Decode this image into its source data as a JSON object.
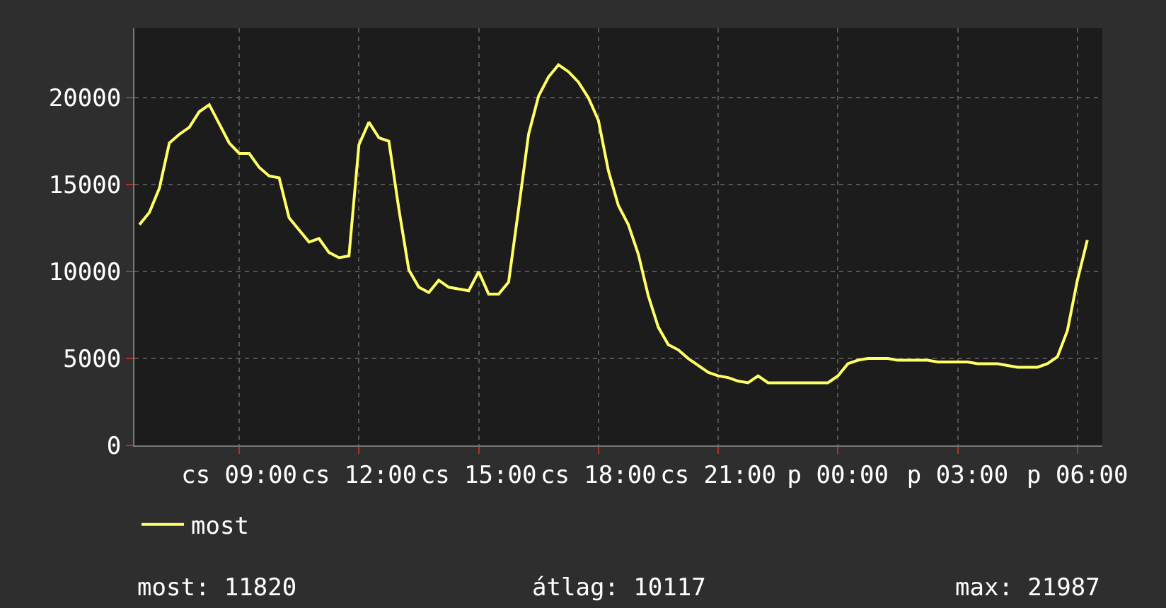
{
  "chart_data": {
    "type": "line",
    "categories": [
      null,
      null,
      null,
      null,
      null,
      null,
      null,
      null,
      null,
      null,
      "cs 09:00",
      null,
      null,
      null,
      null,
      null,
      null,
      null,
      null,
      null,
      null,
      null,
      "cs 12:00",
      null,
      null,
      null,
      null,
      null,
      null,
      null,
      null,
      null,
      null,
      null,
      "cs 15:00",
      null,
      null,
      null,
      null,
      null,
      null,
      null,
      null,
      null,
      null,
      null,
      "cs 18:00",
      null,
      null,
      null,
      null,
      null,
      null,
      null,
      null,
      null,
      null,
      null,
      "cs 21:00",
      null,
      null,
      null,
      null,
      null,
      null,
      null,
      null,
      null,
      null,
      null,
      "p 00:00",
      null,
      null,
      null,
      null,
      null,
      null,
      null,
      null,
      null,
      null,
      null,
      "p 03:00",
      null,
      null,
      null,
      null,
      null,
      null,
      null,
      null,
      null,
      null,
      null,
      "p 06:00",
      null
    ],
    "series": [
      {
        "name": "most",
        "color": "#ffff66",
        "values": [
          12700,
          13400,
          14800,
          17400,
          17900,
          18300,
          19200,
          19600,
          18500,
          17400,
          16800,
          16800,
          16000,
          15500,
          15400,
          13100,
          12400,
          11700,
          11900,
          11100,
          10800,
          10900,
          17300,
          18600,
          17700,
          17500,
          13600,
          10100,
          9100,
          8800,
          9500,
          9100,
          9000,
          8900,
          10000,
          8700,
          8700,
          9400,
          13600,
          17900,
          20100,
          21200,
          21900,
          21500,
          20900,
          20000,
          18700,
          15800,
          13800,
          12700,
          11000,
          8600,
          6800,
          5800,
          5500,
          5000,
          4600,
          4200,
          4000,
          3900,
          3700,
          3600,
          4000,
          3600,
          3600,
          3600,
          3600,
          3600,
          3600,
          3600,
          4000,
          4700,
          4900,
          5000,
          5000,
          5000,
          4900,
          4900,
          4900,
          4900,
          4800,
          4800,
          4800,
          4800,
          4700,
          4700,
          4700,
          4600,
          4500,
          4500,
          4500,
          4700,
          5100,
          6600,
          9500,
          11820
        ]
      }
    ],
    "ylim": [
      0,
      24000
    ],
    "yticks": [
      0,
      5000,
      10000,
      15000,
      20000
    ],
    "grid": true,
    "legend": "bottom",
    "annotations": [
      "most: 11820",
      "átlag: 10117",
      "max: 21987"
    ]
  }
}
